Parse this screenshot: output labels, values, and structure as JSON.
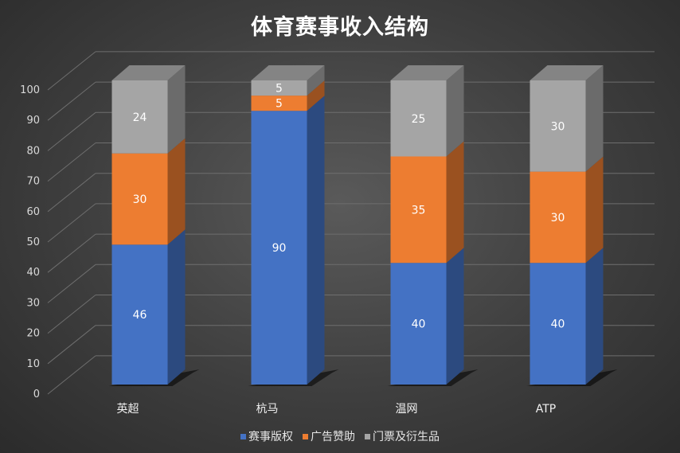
{
  "chart_data": {
    "type": "bar",
    "stacked": true,
    "three_d": true,
    "title": "体育赛事收入结构",
    "categories": [
      "英超",
      "杭马",
      "温网",
      "ATP"
    ],
    "series": [
      {
        "name": "赛事版权",
        "values": [
          46,
          90,
          40,
          40
        ],
        "color": "#4472c4"
      },
      {
        "name": "广告赞助",
        "values": [
          30,
          5,
          35,
          30
        ],
        "color": "#ed7d31"
      },
      {
        "name": "门票及衍生品",
        "values": [
          24,
          5,
          25,
          30
        ],
        "color": "#a5a5a5"
      }
    ],
    "ylim": [
      0,
      100
    ],
    "yticks": [
      "0",
      "10",
      "20",
      "30",
      "40",
      "50",
      "60",
      "70",
      "80",
      "90",
      "100"
    ],
    "xlabel": "",
    "ylabel": "",
    "grid": true,
    "legend_position": "bottom",
    "data_labels": true
  }
}
